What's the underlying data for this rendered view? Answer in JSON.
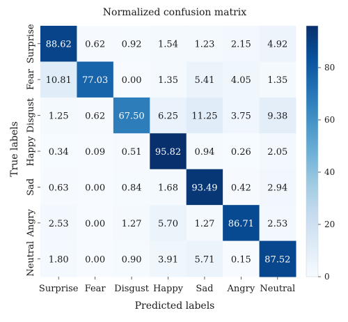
{
  "chart_data": {
    "type": "heatmap",
    "title": "Normalized confusion matrix",
    "xlabel": "Predicted labels",
    "ylabel": "True labels",
    "x_categories": [
      "Surprise",
      "Fear",
      "Disgust",
      "Happy",
      "Sad",
      "Angry",
      "Neutral"
    ],
    "y_categories": [
      "Surprise",
      "Fear",
      "Disgust",
      "Happy",
      "Sad",
      "Angry",
      "Neutral"
    ],
    "values": [
      [
        88.62,
        0.62,
        0.92,
        1.54,
        1.23,
        2.15,
        4.92
      ],
      [
        10.81,
        77.03,
        0.0,
        1.35,
        5.41,
        4.05,
        1.35
      ],
      [
        1.25,
        0.62,
        67.5,
        6.25,
        11.25,
        3.75,
        9.38
      ],
      [
        0.34,
        0.09,
        0.51,
        95.82,
        0.94,
        0.26,
        2.05
      ],
      [
        0.63,
        0.0,
        0.84,
        1.68,
        93.49,
        0.42,
        2.94
      ],
      [
        2.53,
        0.0,
        1.27,
        5.7,
        1.27,
        86.71,
        2.53
      ],
      [
        1.8,
        0.0,
        0.9,
        3.91,
        5.71,
        0.15,
        87.52
      ]
    ],
    "value_format": "2 decimals",
    "colormap": "Blues",
    "colorbar": {
      "min": 0,
      "max": 96,
      "ticks": [
        0,
        20,
        40,
        60,
        80
      ]
    },
    "grid": false,
    "legend": "right colorbar"
  }
}
